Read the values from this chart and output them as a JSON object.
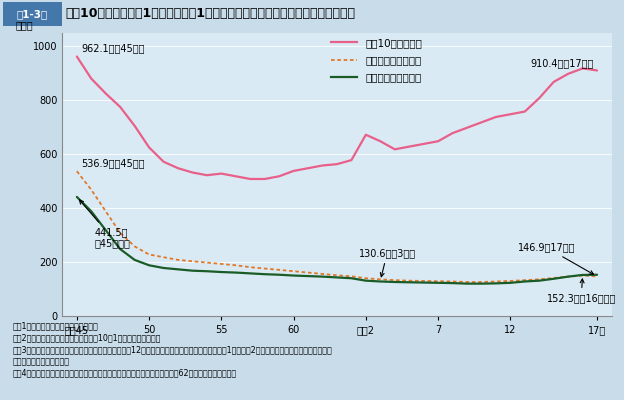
{
  "title_box": "第1-3図",
  "title_main": "人口10万人・自動車1万台・自動車1億走行キロ当たりの交通事故死傷者数の推移",
  "ylabel": "（人）",
  "fig_bg": "#c8dcea",
  "plot_bg": "#daeaf4",
  "pink_line": [
    962.1,
    880,
    825,
    775,
    705,
    625,
    572,
    548,
    532,
    522,
    528,
    518,
    508,
    508,
    518,
    538,
    548,
    558,
    563,
    578,
    672,
    648,
    618,
    628,
    638,
    648,
    678,
    698,
    718,
    738,
    748,
    758,
    808,
    868,
    898,
    918,
    910.4
  ],
  "orange_line": [
    536.9,
    468,
    388,
    308,
    258,
    228,
    218,
    208,
    203,
    198,
    193,
    188,
    181,
    176,
    171,
    166,
    161,
    156,
    151,
    147,
    140,
    136,
    133,
    131,
    130,
    129,
    128,
    126,
    126,
    128,
    130,
    133,
    136,
    141,
    146,
    150,
    146.9
  ],
  "green_line": [
    441.5,
    388,
    318,
    248,
    208,
    188,
    178,
    173,
    168,
    166,
    163,
    161,
    158,
    155,
    153,
    150,
    148,
    146,
    143,
    140,
    131,
    128,
    126,
    125,
    124,
    123,
    122,
    120,
    120,
    121,
    123,
    128,
    131,
    138,
    146,
    152.3,
    153
  ],
  "x_ticks_pos": [
    0,
    5,
    10,
    15,
    20,
    25,
    30,
    36
  ],
  "x_ticks_labels": [
    "昭和45",
    "50",
    "55",
    "60",
    "平成2",
    "7",
    "12",
    "17年"
  ],
  "ylim": [
    0,
    1050
  ],
  "yticks": [
    0,
    200,
    400,
    600,
    800,
    1000
  ],
  "xlim": [
    -1,
    37
  ],
  "legend_labels": [
    "人口10万人当たり",
    "自動車１万台当たり",
    "１億走行キロ当たり"
  ],
  "legend_colors": [
    "#e8608a",
    "#e07828",
    "#1a5c28"
  ],
  "notes": [
    "注　1　死傷者数は警察庁資料による。",
    "　　2　人口は総務省資料により，各年10月1日現在の値である。",
    "　　3　自動車保有台数は国土交通省資料により，各年12月末現在の値である。保有台数には，第1種及び第2種原動機付自転車並びに小型特殊自",
    "　　　　動車を含まない。",
    "　　4　自動車走行キロは国土交通省資料により，軽自動車によるものは昭和62年度から計上された。"
  ],
  "font_size": 7,
  "title_font_size": 9
}
